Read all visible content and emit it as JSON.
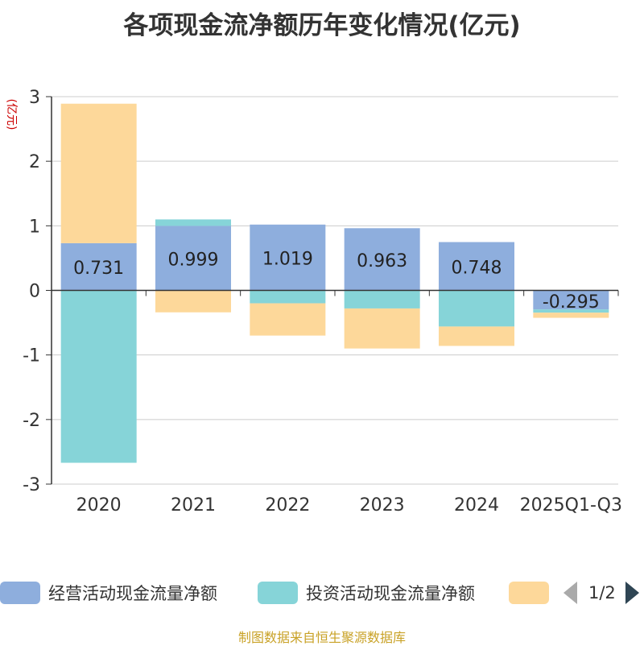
{
  "chart_data": {
    "type": "bar",
    "stacked": true,
    "title": "各项现金流净额历年变化情况(亿元)",
    "ylabel": "(亿元)",
    "ylim": [
      -3,
      3
    ],
    "yticks": [
      3,
      2,
      1,
      0,
      -1,
      -2,
      -3
    ],
    "categories": [
      "2020",
      "2021",
      "2022",
      "2023",
      "2024",
      "2025Q1-Q3"
    ],
    "series": [
      {
        "name": "经营活动现金流量净额",
        "color": "#8eaedd",
        "values": [
          0.731,
          0.999,
          1.019,
          0.963,
          0.748,
          -0.295
        ],
        "labels": [
          "0.731",
          "0.999",
          "1.019",
          "0.963",
          "0.748",
          "-0.295"
        ]
      },
      {
        "name": "投资活动现金流量净额",
        "color": "#86d4d8",
        "values": [
          -2.67,
          0.1,
          -0.2,
          -0.28,
          -0.56,
          -0.05
        ]
      },
      {
        "name": "",
        "color": "#fdd89a",
        "values": [
          2.16,
          -0.34,
          -0.5,
          -0.62,
          -0.3,
          -0.08
        ]
      }
    ],
    "grid": true,
    "legend_position": "bottom"
  },
  "legend": {
    "pager": "1/2"
  },
  "source_note": "制图数据来自恒生聚源数据库"
}
